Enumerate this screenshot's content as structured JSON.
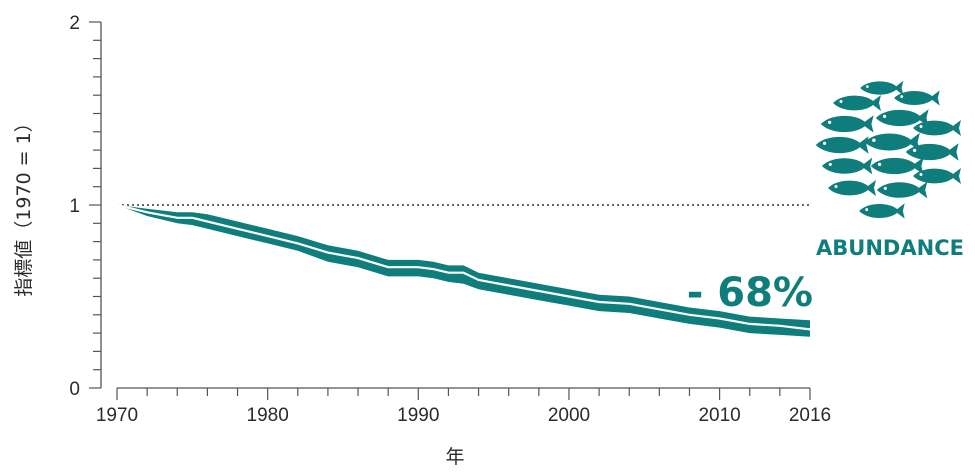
{
  "chart_data": {
    "type": "line",
    "xlabel": "年",
    "ylabel": "指標値（1970 = 1）",
    "xlim": [
      1970,
      2016
    ],
    "ylim": [
      0,
      2
    ],
    "x_ticks": [
      "1970",
      "1980",
      "1990",
      "2000",
      "2010",
      "2016"
    ],
    "y_ticks": [
      "0",
      "1",
      "2"
    ],
    "reference_line": 1,
    "series": [
      {
        "x": [
          1970,
          1972,
          1974,
          1975,
          1976,
          1978,
          1980,
          1982,
          1984,
          1986,
          1988,
          1990,
          1991,
          1992,
          1993,
          1994,
          1996,
          1998,
          2000,
          2002,
          2004,
          2006,
          2008,
          2010,
          2012,
          2014,
          2016
        ],
        "y": [
          1.0,
          0.96,
          0.93,
          0.93,
          0.91,
          0.87,
          0.83,
          0.79,
          0.74,
          0.71,
          0.66,
          0.66,
          0.65,
          0.63,
          0.63,
          0.59,
          0.56,
          0.53,
          0.5,
          0.47,
          0.46,
          0.43,
          0.4,
          0.38,
          0.35,
          0.34,
          0.32
        ],
        "lower": [
          1.0,
          0.94,
          0.9,
          0.89,
          0.87,
          0.83,
          0.79,
          0.75,
          0.69,
          0.66,
          0.61,
          0.61,
          0.6,
          0.58,
          0.57,
          0.54,
          0.51,
          0.48,
          0.45,
          0.42,
          0.41,
          0.38,
          0.35,
          0.33,
          0.3,
          0.29,
          0.28
        ],
        "upper": [
          1.0,
          0.98,
          0.96,
          0.96,
          0.95,
          0.91,
          0.87,
          0.83,
          0.78,
          0.75,
          0.7,
          0.7,
          0.69,
          0.67,
          0.67,
          0.63,
          0.6,
          0.57,
          0.54,
          0.51,
          0.5,
          0.47,
          0.44,
          0.42,
          0.39,
          0.38,
          0.37
        ]
      }
    ],
    "change_label": "- 68%",
    "icon_label": "ABUNDANCE",
    "colors": {
      "band": "#0e7d7b",
      "line": "#ffffff",
      "axis": "#555555",
      "reference": "#333333"
    }
  }
}
